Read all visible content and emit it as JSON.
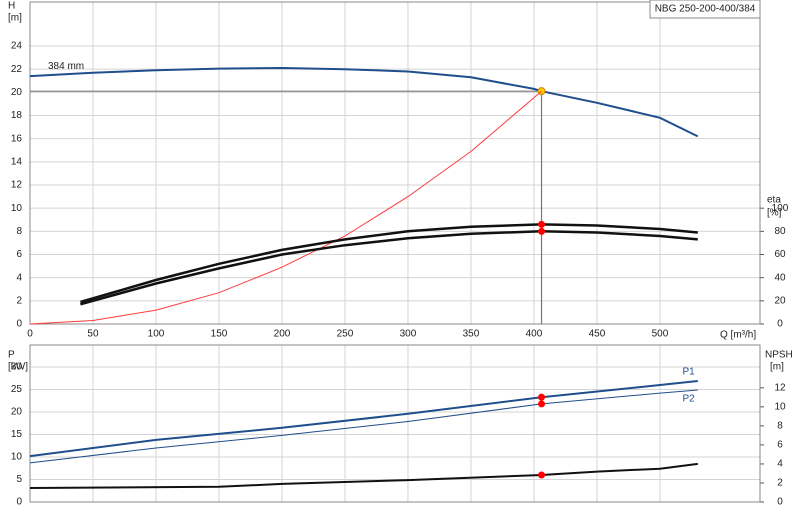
{
  "chart_data": [
    {
      "type": "line",
      "title": "NBG 250-200-400/384",
      "annotation": "384 mm",
      "ylabel": "H",
      "yunit": "[m]",
      "y2label": "eta",
      "y2unit": "[%]",
      "xlabel": "Q [m³/h]",
      "xlim": [
        0,
        579.4
      ],
      "xticks": [
        0,
        50,
        100,
        150,
        200,
        250,
        300,
        350,
        400,
        450,
        500
      ],
      "ylim": [
        0,
        27.8
      ],
      "yticks": [
        0,
        2,
        4,
        6,
        8,
        10,
        12,
        14,
        16,
        18,
        20,
        22,
        24
      ],
      "y2lim": [
        0,
        278
      ],
      "y2ticks": [
        0,
        20,
        40,
        60,
        80,
        100
      ],
      "grid": true,
      "duty_x": 406,
      "duty_lines": true,
      "series": [
        {
          "color": "#1f4e8c",
          "width": 2,
          "dot_color": "#ffcc00",
          "x": [
            0,
            50,
            100,
            150,
            200,
            250,
            300,
            350,
            400,
            406,
            450,
            500,
            530
          ],
          "values": [
            21.4,
            21.7,
            21.9,
            22.05,
            22.1,
            22.0,
            21.8,
            21.3,
            20.3,
            20.1,
            19.1,
            17.8,
            16.2
          ]
        },
        {
          "color": "#ff3b3b",
          "width": 1,
          "x": [
            0,
            50,
            100,
            150,
            200,
            250,
            300,
            350,
            406
          ],
          "values": [
            0,
            0.3,
            1.2,
            2.7,
            4.9,
            7.6,
            11.0,
            14.9,
            20.1
          ]
        },
        {
          "color": "#111111",
          "width": 2.5,
          "axis": "y2",
          "dot_color": "#ff0000",
          "x": [
            40,
            100,
            150,
            200,
            250,
            300,
            350,
            406,
            450,
            500,
            530
          ],
          "values": [
            19,
            38,
            52,
            64,
            73,
            80,
            84,
            86,
            85,
            82,
            79
          ]
        },
        {
          "color": "#111111",
          "width": 2.5,
          "axis": "y2",
          "dot_color": "#ff0000",
          "x": [
            40,
            100,
            150,
            200,
            250,
            300,
            350,
            406,
            450,
            500,
            530
          ],
          "values": [
            17,
            35,
            48,
            60,
            68,
            74,
            78,
            80,
            79,
            76,
            73
          ]
        }
      ]
    },
    {
      "type": "line",
      "ylabel": "P",
      "yunit": "[kW]",
      "y2label": "NPSH",
      "y2unit": "[m]",
      "xlim": [
        0,
        579.4
      ],
      "ylim": [
        0,
        34.9
      ],
      "yticks": [
        0,
        5,
        10,
        15,
        20,
        25,
        30
      ],
      "y2lim": [
        0,
        16.5
      ],
      "y2ticks": [
        0,
        2,
        4,
        6,
        8,
        10,
        12
      ],
      "grid": true,
      "duty_x": 406,
      "series": [
        {
          "name": "P1",
          "color": "#1f4e8c",
          "width": 2,
          "dot_color": "#ff0000",
          "x": [
            0,
            100,
            200,
            300,
            406,
            500,
            530
          ],
          "values": [
            10.2,
            13.8,
            16.5,
            19.6,
            23.3,
            26.0,
            26.9
          ]
        },
        {
          "name": "P2",
          "color": "#1f4e8c",
          "width": 1,
          "dot_color": "#ff0000",
          "x": [
            0,
            100,
            200,
            300,
            406,
            500,
            530
          ],
          "values": [
            8.7,
            12.0,
            14.8,
            17.9,
            21.8,
            24.2,
            24.9
          ]
        },
        {
          "color": "#111111",
          "width": 2,
          "axis": "y2",
          "dot_color": "#ff0000",
          "x": [
            0,
            150,
            200,
            300,
            406,
            450,
            500,
            530
          ],
          "values": [
            1.47,
            1.6,
            1.9,
            2.3,
            2.84,
            3.2,
            3.5,
            4.0
          ]
        }
      ]
    }
  ]
}
